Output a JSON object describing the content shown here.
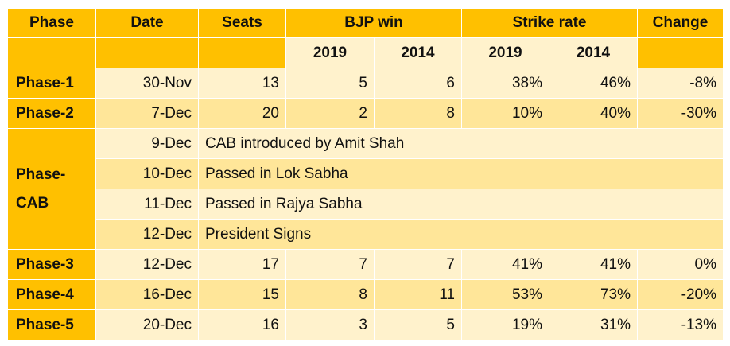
{
  "headers": {
    "phase": "Phase",
    "date": "Date",
    "seats": "Seats",
    "bjp_win": "BJP win",
    "strike_rate": "Strike rate",
    "change": "Change",
    "y2019": "2019",
    "y2014": "2014"
  },
  "rows_top": [
    {
      "phase": "Phase-1",
      "date": "30-Nov",
      "seats": "13",
      "win2019": "5",
      "win2014": "6",
      "sr2019": "38%",
      "sr2014": "46%",
      "change": "-8%"
    },
    {
      "phase": "Phase-2",
      "date": "7-Dec",
      "seats": "20",
      "win2019": "2",
      "win2014": "8",
      "sr2019": "10%",
      "sr2014": "40%",
      "change": "-30%"
    }
  ],
  "cab": {
    "label_line1": "Phase-",
    "label_line2": "CAB",
    "events": [
      {
        "date": "9-Dec",
        "text": "CAB introduced by Amit Shah"
      },
      {
        "date": "10-Dec",
        "text": "Passed in Lok Sabha"
      },
      {
        "date": "11-Dec",
        "text": "Passed in Rajya Sabha"
      },
      {
        "date": "12-Dec",
        "text": "President Signs"
      }
    ]
  },
  "rows_bottom": [
    {
      "phase": "Phase-3",
      "date": "12-Dec",
      "seats": "17",
      "win2019": "7",
      "win2014": "7",
      "sr2019": "41%",
      "sr2014": "41%",
      "change": "0%"
    },
    {
      "phase": "Phase-4",
      "date": "16-Dec",
      "seats": "15",
      "win2019": "8",
      "win2014": "11",
      "sr2019": "53%",
      "sr2014": "73%",
      "change": "-20%"
    },
    {
      "phase": "Phase-5",
      "date": "20-Dec",
      "seats": "16",
      "win2019": "3",
      "win2014": "5",
      "sr2019": "19%",
      "sr2014": "31%",
      "change": "-13%"
    }
  ],
  "colors": {
    "header": "#ffc000",
    "row_light": "#fff2cc",
    "row_dark": "#ffe699"
  }
}
